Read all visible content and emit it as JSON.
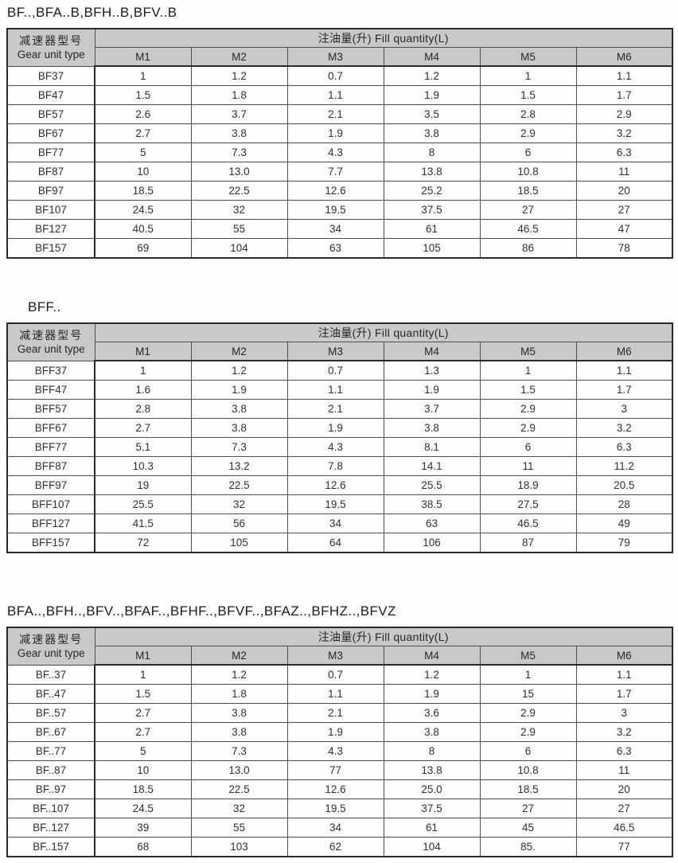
{
  "colors": {
    "header_bg": "#c9c9c9",
    "border_dark": "#2a2a2a",
    "text": "#262626"
  },
  "header": {
    "gear_unit_line1": "减速器型号",
    "gear_unit_line2": "Gear unit type",
    "fill_quantity_label": "注油量(升) Fill quantity(L)",
    "measure_columns": [
      "M1",
      "M2",
      "M3",
      "M4",
      "M5",
      "M6"
    ]
  },
  "tables": [
    {
      "title": "BF..,BFA..B,BFH..B,BFV..B",
      "rows": [
        {
          "type": "BF37",
          "values": [
            "1",
            "1.2",
            "0.7",
            "1.2",
            "1",
            "1.1"
          ]
        },
        {
          "type": "BF47",
          "values": [
            "1.5",
            "1.8",
            "1.1",
            "1.9",
            "1.5",
            "1.7"
          ]
        },
        {
          "type": "BF57",
          "values": [
            "2.6",
            "3.7",
            "2.1",
            "3.5",
            "2.8",
            "2.9"
          ]
        },
        {
          "type": "BF67",
          "values": [
            "2.7",
            "3.8",
            "1.9",
            "3.8",
            "2.9",
            "3.2"
          ]
        },
        {
          "type": "BF77",
          "values": [
            "5",
            "7.3",
            "4.3",
            "8",
            "6",
            "6.3"
          ]
        },
        {
          "type": "BF87",
          "values": [
            "10",
            "13.0",
            "7.7",
            "13.8",
            "10.8",
            "11"
          ]
        },
        {
          "type": "BF97",
          "values": [
            "18.5",
            "22.5",
            "12.6",
            "25.2",
            "18.5",
            "20"
          ]
        },
        {
          "type": "BF107",
          "values": [
            "24.5",
            "32",
            "19.5",
            "37.5",
            "27",
            "27"
          ]
        },
        {
          "type": "BF127",
          "values": [
            "40.5",
            "55",
            "34",
            "61",
            "46.5",
            "47"
          ]
        },
        {
          "type": "BF157",
          "values": [
            "69",
            "104",
            "63",
            "105",
            "86",
            "78"
          ]
        }
      ]
    },
    {
      "title": "BFF..",
      "rows": [
        {
          "type": "BFF37",
          "values": [
            "1",
            "1.2",
            "0.7",
            "1.3",
            "1",
            "1.1"
          ]
        },
        {
          "type": "BFF47",
          "values": [
            "1.6",
            "1.9",
            "1.1",
            "1.9",
            "1.5",
            "1.7"
          ]
        },
        {
          "type": "BFF57",
          "values": [
            "2.8",
            "3.8",
            "2.1",
            "3.7",
            "2.9",
            "3"
          ]
        },
        {
          "type": "BFF67",
          "values": [
            "2.7",
            "3.8",
            "1.9",
            "3.8",
            "2.9",
            "3.2"
          ]
        },
        {
          "type": "BFF77",
          "values": [
            "5.1",
            "7.3",
            "4.3",
            "8.1",
            "6",
            "6.3"
          ]
        },
        {
          "type": "BFF87",
          "values": [
            "10.3",
            "13.2",
            "7.8",
            "14.1",
            "11",
            "11.2"
          ]
        },
        {
          "type": "BFF97",
          "values": [
            "19",
            "22.5",
            "12.6",
            "25.5",
            "18.9",
            "20.5"
          ]
        },
        {
          "type": "BFF107",
          "values": [
            "25.5",
            "32",
            "19.5",
            "38.5",
            "27.5",
            "28"
          ]
        },
        {
          "type": "BFF127",
          "values": [
            "41.5",
            "56",
            "34",
            "63",
            "46.5",
            "49"
          ]
        },
        {
          "type": "BFF157",
          "values": [
            "72",
            "105",
            "64",
            "106",
            "87",
            "79"
          ]
        }
      ]
    },
    {
      "title": "BFA..,BFH..,BFV..,BFAF..,BFHF..,BFVF..,BFAZ..,BFHZ..,BFVZ",
      "rows": [
        {
          "type": "BF..37",
          "values": [
            "1",
            "1.2",
            "0.7",
            "1.2",
            "1",
            "1.1"
          ]
        },
        {
          "type": "BF..47",
          "values": [
            "1.5",
            "1.8",
            "1.1",
            "1.9",
            "15",
            "1.7"
          ]
        },
        {
          "type": "BF..57",
          "values": [
            "2.7",
            "3.8",
            "2.1",
            "3.6",
            "2.9",
            "3"
          ]
        },
        {
          "type": "BF..67",
          "values": [
            "2.7",
            "3.8",
            "1.9",
            "3.8",
            "2.9",
            "3.2"
          ]
        },
        {
          "type": "BF..77",
          "values": [
            "5",
            "7.3",
            "4.3",
            "8",
            "6",
            "6.3"
          ]
        },
        {
          "type": "BF..87",
          "values": [
            "10",
            "13.0",
            "77",
            "13.8",
            "10.8",
            "11"
          ]
        },
        {
          "type": "BF..97",
          "values": [
            "18.5",
            "22.5",
            "12.6",
            "25.0",
            "18.5",
            "20"
          ]
        },
        {
          "type": "BF..107",
          "values": [
            "24.5",
            "32",
            "19.5",
            "37.5",
            "27",
            "27"
          ]
        },
        {
          "type": "BF..127",
          "values": [
            "39",
            "55",
            "34",
            "61",
            "45",
            "46.5"
          ]
        },
        {
          "type": "BF..157",
          "values": [
            "68",
            "103",
            "62",
            "104",
            "85.",
            "77"
          ]
        }
      ]
    }
  ]
}
